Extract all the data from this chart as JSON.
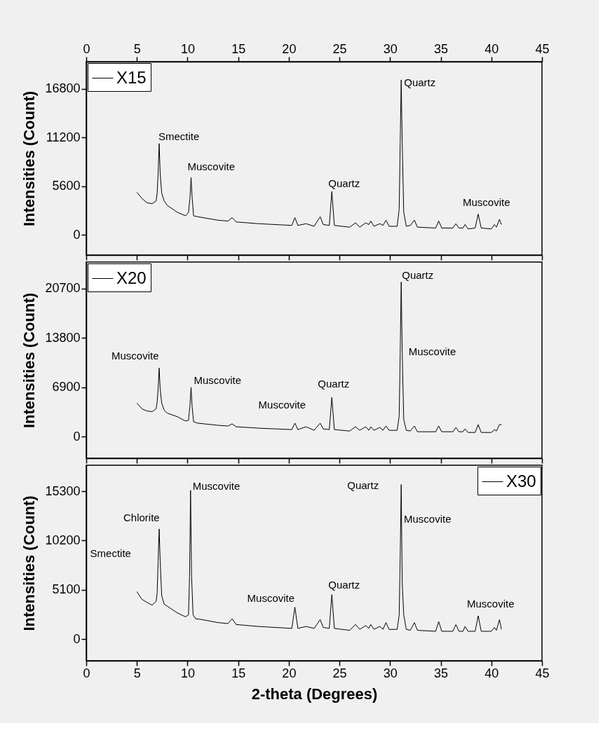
{
  "chart_data": [
    {
      "type": "line",
      "ylabel": "Intensities (Count)",
      "legend": "top left",
      "grid": false,
      "tick_labels": "y",
      "xlim": [
        0,
        45
      ],
      "xticks": [
        0,
        5,
        10,
        15,
        20,
        25,
        30,
        35,
        40,
        45
      ],
      "x2lim": [
        0,
        45
      ],
      "x2ticks": [
        0,
        5,
        10,
        15,
        20,
        25,
        30,
        35,
        40,
        45
      ],
      "ylim": [
        -2300,
        19900
      ],
      "yticks": [
        0,
        5600,
        11200,
        16800
      ],
      "series": [
        {
          "name": "X15",
          "color": "#000000",
          "x": [
            5.0,
            5.5,
            6.0,
            6.5,
            6.9,
            7.0,
            7.1,
            7.2,
            7.3,
            7.45,
            7.7,
            8.0,
            9.0,
            9.8,
            10.1,
            10.25,
            10.35,
            10.45,
            10.6,
            11,
            13,
            14.0,
            14.4,
            14.8,
            17,
            20.3,
            20.6,
            20.9,
            21.7,
            22.5,
            23.1,
            23.4,
            24.0,
            24.25,
            24.5,
            26.0,
            26.6,
            27.0,
            27.6,
            27.9,
            28.1,
            28.4,
            29.0,
            29.3,
            29.6,
            29.9,
            30.7,
            30.9,
            31.0,
            31.1,
            31.2,
            31.35,
            31.6,
            32.0,
            32.4,
            32.7,
            34.5,
            34.8,
            35.1,
            36.2,
            36.5,
            36.8,
            37.2,
            37.4,
            37.7,
            38.4,
            38.7,
            39.0,
            40.0,
            40.3,
            40.5,
            40.8,
            41.0
          ],
          "values": [
            4900,
            4200,
            3700,
            3600,
            3900,
            4800,
            7100,
            10500,
            7100,
            4800,
            3900,
            3400,
            2600,
            2200,
            2600,
            4400,
            6600,
            4400,
            2200,
            2100,
            1700,
            1600,
            2000,
            1500,
            1300,
            1100,
            2000,
            1100,
            1300,
            1000,
            2100,
            1200,
            1100,
            5000,
            1100,
            900,
            1400,
            900,
            1400,
            1200,
            1600,
            1000,
            1300,
            1100,
            1700,
            1000,
            1000,
            3000,
            10600,
            17800,
            10600,
            2600,
            1000,
            1100,
            1700,
            900,
            800,
            1600,
            800,
            800,
            1300,
            800,
            800,
            1200,
            700,
            800,
            2400,
            800,
            700,
            1200,
            900,
            1800,
            1200
          ]
        }
      ],
      "annotations": [
        {
          "text": "Smectite",
          "x": 7.2,
          "y": 10500
        },
        {
          "text": "Muscovite",
          "x": 10.35,
          "y": 6600
        },
        {
          "text": "Quartz",
          "x": 24.25,
          "y": 5000
        },
        {
          "text": "Quartz",
          "x": 31.1,
          "y": 17800
        },
        {
          "text": "Muscovite",
          "x": 38.7,
          "y": 2400
        }
      ]
    },
    {
      "type": "line",
      "ylabel": "Intensities (Count)",
      "legend": "top left",
      "grid": false,
      "tick_labels": "y",
      "xlim": [
        0,
        45
      ],
      "xticks": [
        0,
        5,
        10,
        15,
        20,
        25,
        30,
        35,
        40,
        45
      ],
      "ylim": [
        -3000,
        24400
      ],
      "yticks": [
        0,
        6900,
        13800,
        20700
      ],
      "series": [
        {
          "name": "X20",
          "color": "#000000",
          "x": [
            5.0,
            5.5,
            6.0,
            6.5,
            6.9,
            7.0,
            7.1,
            7.2,
            7.3,
            7.45,
            7.7,
            8.0,
            9.0,
            9.8,
            10.1,
            10.25,
            10.35,
            10.45,
            10.6,
            11,
            13,
            14.0,
            14.4,
            14.8,
            17,
            20.3,
            20.6,
            20.9,
            21.7,
            22.5,
            23.1,
            23.4,
            24.0,
            24.25,
            24.5,
            26.0,
            26.6,
            27.0,
            27.6,
            27.9,
            28.1,
            28.4,
            29.0,
            29.3,
            29.6,
            29.9,
            30.7,
            30.9,
            31.0,
            31.1,
            31.2,
            31.35,
            31.6,
            32.0,
            32.4,
            32.7,
            34.5,
            34.8,
            35.1,
            36.2,
            36.5,
            36.8,
            37.2,
            37.4,
            37.7,
            38.4,
            38.7,
            39.0,
            40.0,
            40.3,
            40.5,
            40.8,
            41.0
          ],
          "values": [
            4700,
            3900,
            3600,
            3500,
            3900,
            4800,
            6700,
            9600,
            6700,
            4700,
            3700,
            3300,
            2800,
            2200,
            2300,
            4500,
            6900,
            4300,
            2100,
            1900,
            1600,
            1500,
            1800,
            1400,
            1200,
            1000,
            1900,
            1000,
            1400,
            900,
            1900,
            1100,
            1000,
            5500,
            1000,
            800,
            1400,
            900,
            1400,
            900,
            1400,
            900,
            1300,
            900,
            1500,
            900,
            900,
            2900,
            11700,
            21600,
            11700,
            2400,
            900,
            800,
            1500,
            700,
            700,
            1500,
            700,
            700,
            1300,
            700,
            700,
            1100,
            600,
            600,
            1700,
            600,
            600,
            1000,
            800,
            1700,
            1700
          ]
        }
      ],
      "annotations": [
        {
          "text": "Muscovite",
          "x": 7.2,
          "y": 9600
        },
        {
          "text": "Muscovite",
          "x": 10.35,
          "y": 6900
        },
        {
          "text": "Muscovite",
          "x": 20.6,
          "y": 1900
        },
        {
          "text": "Quartz",
          "x": 24.25,
          "y": 5500
        },
        {
          "text": "Quartz",
          "x": 31.1,
          "y": 21600
        },
        {
          "text": "Muscovite",
          "x": 31.0,
          "y": 11700
        }
      ]
    },
    {
      "type": "line",
      "ylabel": "Intensities (Count)",
      "xlabel": "2-theta (Degrees)",
      "legend": "top right",
      "grid": false,
      "xlim": [
        0,
        45
      ],
      "xticks": [
        0,
        5,
        10,
        15,
        20,
        25,
        30,
        35,
        40,
        45
      ],
      "ylim": [
        -2250,
        18000
      ],
      "yticks": [
        0,
        5100,
        10200,
        15300
      ],
      "series": [
        {
          "name": "X30",
          "color": "#000000",
          "x": [
            5.0,
            5.5,
            6.0,
            6.5,
            6.9,
            7.0,
            7.1,
            7.2,
            7.3,
            7.45,
            7.7,
            8.0,
            9.0,
            9.8,
            10.1,
            10.2,
            10.3,
            10.4,
            10.55,
            10.8,
            11.5,
            13,
            14.0,
            14.4,
            14.8,
            17,
            20.3,
            20.6,
            20.9,
            21.7,
            22.5,
            23.1,
            23.4,
            24.0,
            24.25,
            24.5,
            26.0,
            26.6,
            27.0,
            27.6,
            27.9,
            28.1,
            28.4,
            29.0,
            29.3,
            29.6,
            29.9,
            30.7,
            30.9,
            31.0,
            31.1,
            31.2,
            31.35,
            31.6,
            32.0,
            32.4,
            32.7,
            34.5,
            34.8,
            35.1,
            36.2,
            36.5,
            36.8,
            37.2,
            37.4,
            37.7,
            38.4,
            38.7,
            39.0,
            40.0,
            40.3,
            40.5,
            40.8,
            41.0
          ],
          "values": [
            4900,
            4100,
            3800,
            3500,
            3900,
            4700,
            8100,
            11400,
            8100,
            4500,
            3600,
            3400,
            2700,
            2300,
            2500,
            6500,
            15400,
            6500,
            2500,
            2100,
            2000,
            1700,
            1600,
            2100,
            1500,
            1300,
            1100,
            3300,
            1100,
            1300,
            1100,
            2000,
            1200,
            1100,
            4600,
            1100,
            900,
            1500,
            1000,
            1400,
            1100,
            1500,
            1000,
            1300,
            1000,
            1700,
            1000,
            1000,
            2500,
            8500,
            16000,
            5800,
            2500,
            1000,
            900,
            1700,
            900,
            800,
            1800,
            800,
            800,
            1500,
            800,
            800,
            1300,
            800,
            800,
            2400,
            800,
            800,
            1200,
            900,
            2000,
            1000
          ]
        }
      ],
      "annotations": [
        {
          "text": "Smectite",
          "x": 7.1,
          "y": 8100
        },
        {
          "text": "Chlorite",
          "x": 7.2,
          "y": 11400
        },
        {
          "text": "Muscovite",
          "x": 10.3,
          "y": 15400
        },
        {
          "text": "Quartz",
          "x": 31.1,
          "y": 16000
        },
        "Muscovite",
        {
          "text": "Muscovite",
          "x": 20.6,
          "y": 3300
        },
        {
          "text": "Quartz",
          "x": 24.25,
          "y": 4600
        },
        {
          "text": "Muscovite",
          "x": 38.7,
          "y": 2400
        }
      ]
    }
  ]
}
